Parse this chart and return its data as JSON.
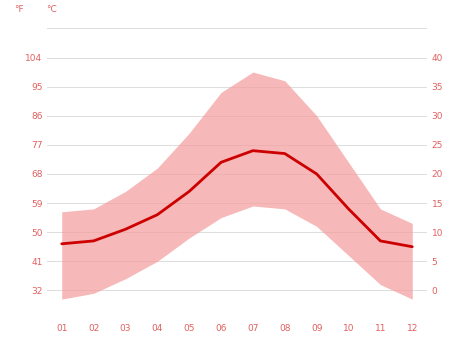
{
  "months": [
    "01",
    "02",
    "03",
    "04",
    "05",
    "06",
    "07",
    "08",
    "09",
    "10",
    "11",
    "12"
  ],
  "avg_temp_c": [
    8.0,
    8.5,
    10.5,
    13.0,
    17.0,
    22.0,
    24.0,
    23.5,
    20.0,
    14.0,
    8.5,
    7.5
  ],
  "max_temp_c": [
    13.5,
    14.0,
    17.0,
    21.0,
    27.0,
    34.0,
    37.5,
    36.0,
    30.0,
    22.0,
    14.0,
    11.5
  ],
  "min_temp_c": [
    -1.5,
    -0.5,
    2.0,
    5.0,
    9.0,
    12.5,
    14.5,
    14.0,
    11.0,
    6.0,
    1.0,
    -1.5
  ],
  "ylim_c_min": -5,
  "ylim_c_max": 45,
  "yticks_c": [
    0,
    5,
    10,
    15,
    20,
    25,
    30,
    35,
    40
  ],
  "ylabel_left": "°F",
  "ylabel_right": "°C",
  "line_color": "#cc0000",
  "fill_color": "#f4a0a0",
  "fill_alpha": 0.75,
  "bg_color": "#ffffff",
  "grid_color": "#dddddd",
  "tick_label_color": "#e06060",
  "figsize": [
    4.74,
    3.55
  ],
  "dpi": 100
}
